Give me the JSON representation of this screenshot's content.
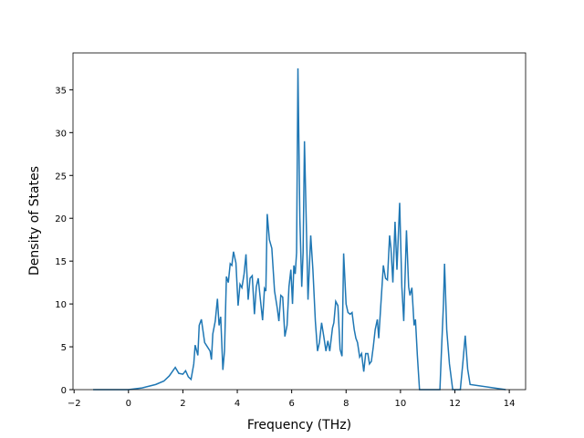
{
  "chart_data": {
    "type": "line",
    "xlabel": "Frequency (THz)",
    "ylabel": "Density of States",
    "xlim": [
      -2.04,
      14.6
    ],
    "ylim": [
      0,
      39.3
    ],
    "xticks": [
      {
        "value": -2,
        "label": "−2"
      },
      0,
      2,
      4,
      6,
      8,
      10,
      12,
      14
    ],
    "yticks": [
      0,
      5,
      10,
      15,
      20,
      25,
      30,
      35
    ],
    "series": [
      {
        "color": "#1f77b4",
        "x": [
          -1.3,
          0,
          0.5,
          1.0,
          1.3,
          1.5,
          1.72,
          1.85,
          2.0,
          2.1,
          2.2,
          2.3,
          2.4,
          2.45,
          2.55,
          2.6,
          2.68,
          2.8,
          2.9,
          3.0,
          3.05,
          3.1,
          3.19,
          3.27,
          3.33,
          3.39,
          3.47,
          3.53,
          3.6,
          3.67,
          3.74,
          3.8,
          3.86,
          3.95,
          4.03,
          4.1,
          4.17,
          4.25,
          4.32,
          4.4,
          4.47,
          4.55,
          4.63,
          4.7,
          4.77,
          4.85,
          4.93,
          5.0,
          5.05,
          5.1,
          5.18,
          5.27,
          5.37,
          5.47,
          5.53,
          5.6,
          5.67,
          5.75,
          5.83,
          5.9,
          5.97,
          6.03,
          6.08,
          6.13,
          6.18,
          6.23,
          6.3,
          6.37,
          6.42,
          6.47,
          6.6,
          6.7,
          6.78,
          6.87,
          6.95,
          7.02,
          7.1,
          7.18,
          7.26,
          7.33,
          7.4,
          7.5,
          7.55,
          7.62,
          7.7,
          7.78,
          7.85,
          7.91,
          8.0,
          8.07,
          8.15,
          8.22,
          8.3,
          8.36,
          8.42,
          8.5,
          8.57,
          8.65,
          8.72,
          8.8,
          8.86,
          8.93,
          9.0,
          9.07,
          9.15,
          9.2,
          9.28,
          9.37,
          9.45,
          9.52,
          9.6,
          9.65,
          9.72,
          9.8,
          9.87,
          9.97,
          10.05,
          10.12,
          10.22,
          10.3,
          10.35,
          10.42,
          10.5,
          10.55,
          10.62,
          10.7,
          11.45,
          11.5,
          11.58,
          11.62,
          11.7,
          11.8,
          11.92,
          12.2,
          12.29,
          12.38,
          12.47,
          12.56,
          13.87
        ],
        "values": [
          0,
          0,
          0.2,
          0.6,
          1.0,
          1.6,
          2.6,
          1.9,
          1.8,
          2.2,
          1.5,
          1.2,
          3.0,
          5.2,
          4.0,
          7.5,
          8.2,
          5.5,
          5.0,
          4.5,
          3.5,
          6.5,
          8.0,
          10.6,
          7.5,
          8.5,
          2.3,
          4.5,
          13.2,
          12.5,
          14.7,
          14.5,
          16.1,
          14.8,
          9.8,
          12.3,
          11.9,
          13.5,
          15.8,
          10.5,
          13.0,
          13.3,
          8.8,
          12.0,
          13.0,
          10.5,
          8.1,
          11.8,
          11.5,
          20.5,
          17.5,
          16.5,
          11.5,
          9.5,
          8.0,
          11.0,
          10.8,
          6.2,
          7.5,
          12.0,
          14.0,
          10.0,
          14.5,
          13.5,
          16.0,
          37.5,
          20.0,
          12.0,
          16.0,
          29.0,
          10.5,
          18.0,
          14.0,
          8.0,
          4.5,
          5.5,
          7.8,
          6.2,
          4.5,
          5.7,
          4.5,
          7.2,
          7.8,
          10.3,
          9.8,
          4.7,
          3.9,
          15.9,
          10.0,
          9.0,
          8.8,
          9.0,
          7.0,
          6.0,
          5.5,
          3.8,
          4.2,
          2.1,
          4.2,
          4.2,
          3.0,
          3.3,
          5.0,
          7.0,
          8.2,
          6.0,
          10.0,
          14.5,
          13.0,
          12.8,
          18.0,
          16.5,
          12.5,
          19.6,
          14.0,
          21.8,
          12.0,
          8.0,
          18.6,
          12.0,
          11.0,
          11.9,
          7.5,
          8.2,
          4.0,
          0,
          0,
          4.0,
          10.0,
          14.7,
          7.0,
          3.0,
          0,
          0,
          3.0,
          6.3,
          2.4,
          0.6,
          0
        ]
      }
    ]
  }
}
